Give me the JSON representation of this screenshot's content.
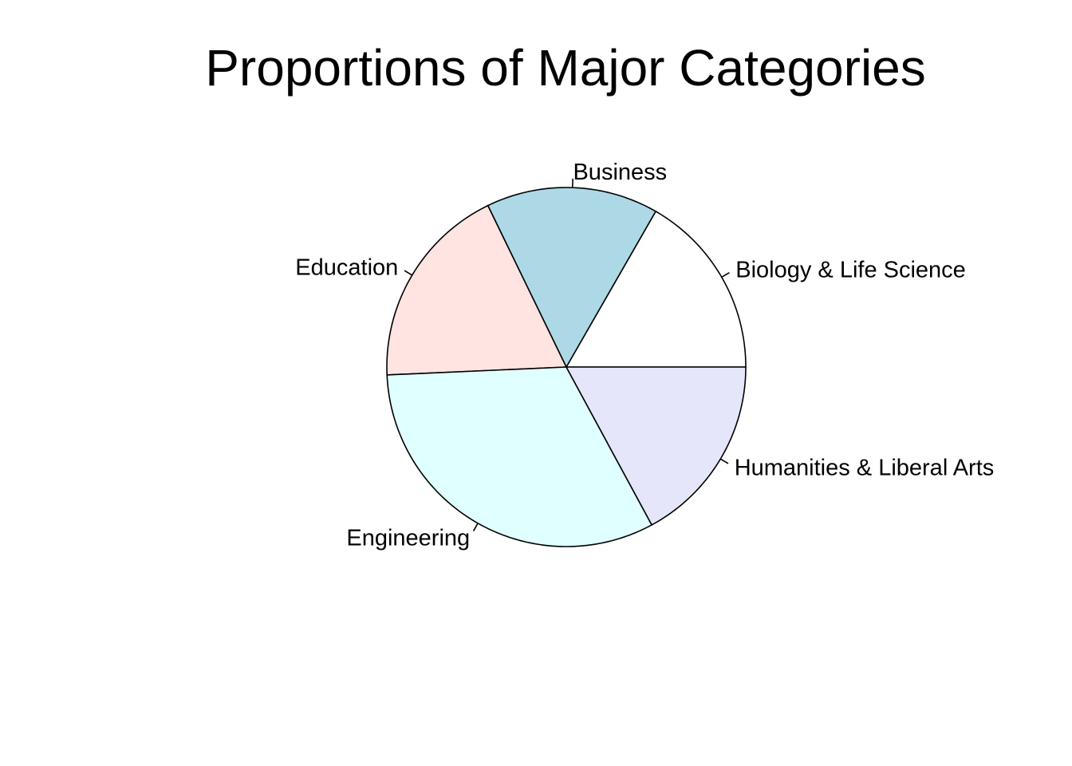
{
  "chart_data": {
    "type": "pie",
    "title": "Proportions of Major Categories",
    "start_angle_deg": 0,
    "direction": "counterclockwise",
    "slices": [
      {
        "label": "Biology & Life Science",
        "value": 0.167,
        "color": "#FFFFFF"
      },
      {
        "label": "Business",
        "value": 0.155,
        "color": "#ADD8E6"
      },
      {
        "label": "Education",
        "value": 0.185,
        "color": "#FFE4E1"
      },
      {
        "label": "Engineering",
        "value": 0.322,
        "color": "#E0FFFF"
      },
      {
        "label": "Humanities & Liberal Arts",
        "value": 0.171,
        "color": "#E6E6FA"
      }
    ]
  }
}
